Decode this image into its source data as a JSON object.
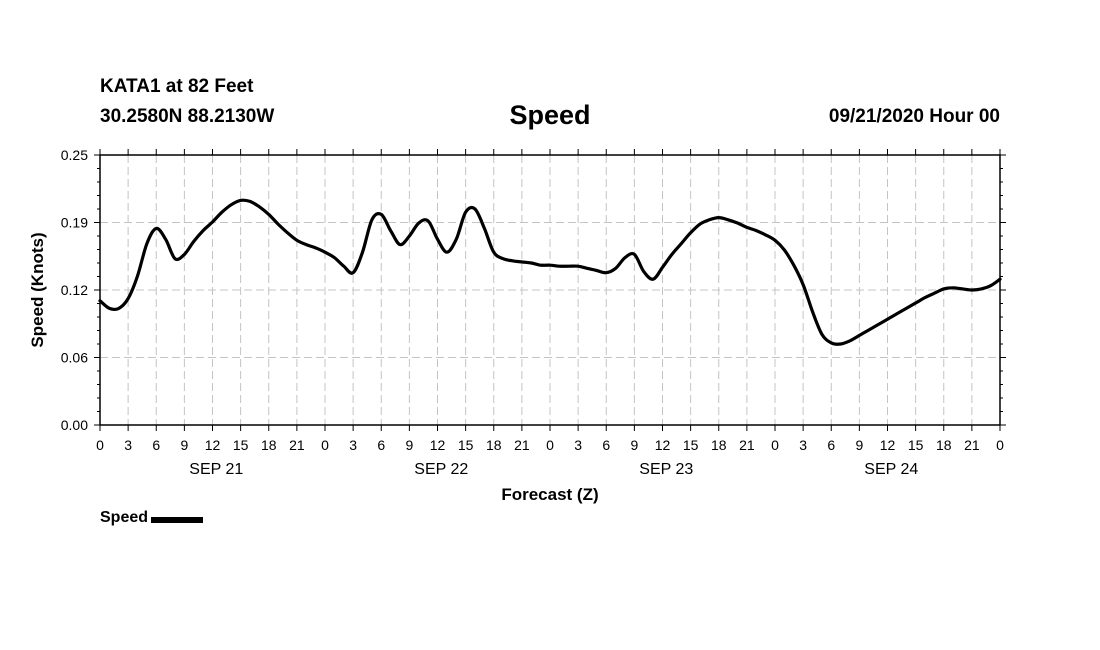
{
  "header": {
    "station": "KATA1 at 82 Feet",
    "coords": "30.2580N 88.2130W",
    "title": "Speed",
    "run": "09/21/2020 Hour 00"
  },
  "legend": {
    "label": "Speed",
    "color": "#000000"
  },
  "chart_data": {
    "type": "line",
    "title": "Speed",
    "ylabel": "Speed (Knots)",
    "xlabel": "Forecast (Z)",
    "ylim": [
      0,
      0.25
    ],
    "yticks": [
      "0.00",
      "0.06",
      "0.12",
      "0.19",
      "0.25"
    ],
    "xlim": [
      0,
      96
    ],
    "xticks": [
      "0",
      "3",
      "6",
      "9",
      "12",
      "15",
      "18",
      "21",
      "0",
      "3",
      "6",
      "9",
      "12",
      "15",
      "18",
      "21",
      "0",
      "3",
      "6",
      "9",
      "12",
      "15",
      "18",
      "21",
      "0",
      "3",
      "6",
      "9",
      "12",
      "15",
      "18",
      "21",
      "0"
    ],
    "day_labels": [
      "SEP 21",
      "SEP 22",
      "SEP 23",
      "SEP 24"
    ],
    "grid": true,
    "legend_position": "bottom-left",
    "series": [
      {
        "name": "Speed",
        "color": "#000000",
        "x": [
          0,
          1,
          2,
          3,
          4,
          5,
          6,
          7,
          8,
          9,
          10,
          11,
          12,
          13,
          14,
          15,
          16,
          17,
          18,
          19,
          20,
          21,
          22,
          23,
          24,
          25,
          26,
          27,
          28,
          29,
          30,
          31,
          32,
          33,
          34,
          35,
          36,
          37,
          38,
          39,
          40,
          41,
          42,
          43,
          44,
          45,
          46,
          47,
          48,
          49,
          50,
          51,
          52,
          53,
          54,
          55,
          56,
          57,
          58,
          59,
          60,
          61,
          62,
          63,
          64,
          65,
          66,
          67,
          68,
          69,
          70,
          71,
          72,
          73,
          74,
          75,
          76,
          77,
          78,
          79,
          80,
          81,
          82,
          83,
          84,
          85,
          86,
          87,
          88,
          89,
          90,
          91,
          92,
          93,
          94,
          95,
          96
        ],
        "values": [
          0.115,
          0.108,
          0.108,
          0.117,
          0.138,
          0.168,
          0.182,
          0.172,
          0.154,
          0.158,
          0.17,
          0.18,
          0.188,
          0.197,
          0.204,
          0.208,
          0.207,
          0.202,
          0.195,
          0.186,
          0.178,
          0.171,
          0.167,
          0.164,
          0.16,
          0.155,
          0.147,
          0.141,
          0.16,
          0.19,
          0.195,
          0.18,
          0.167,
          0.175,
          0.187,
          0.189,
          0.172,
          0.16,
          0.172,
          0.197,
          0.2,
          0.182,
          0.16,
          0.154,
          0.152,
          0.151,
          0.15,
          0.148,
          0.148,
          0.147,
          0.147,
          0.147,
          0.145,
          0.143,
          0.141,
          0.145,
          0.155,
          0.158,
          0.142,
          0.135,
          0.146,
          0.158,
          0.168,
          0.178,
          0.186,
          0.19,
          0.192,
          0.19,
          0.187,
          0.183,
          0.18,
          0.176,
          0.171,
          0.162,
          0.148,
          0.13,
          0.105,
          0.084,
          0.076,
          0.075,
          0.078,
          0.083,
          0.088,
          0.093,
          0.098,
          0.103,
          0.108,
          0.113,
          0.118,
          0.122,
          0.126,
          0.127,
          0.126,
          0.125,
          0.126,
          0.129,
          0.135
        ]
      }
    ]
  }
}
